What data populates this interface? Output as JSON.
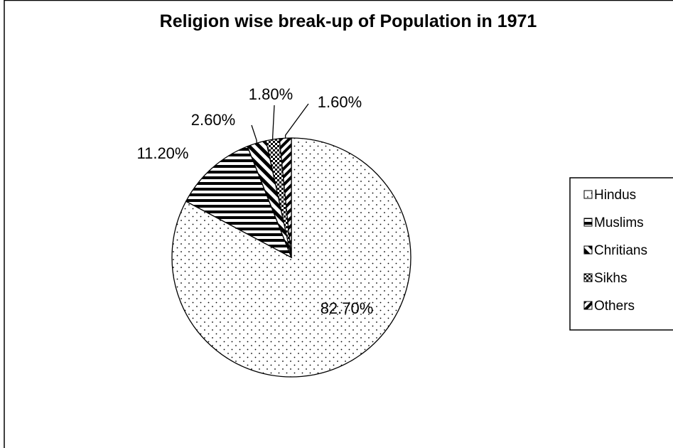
{
  "chart_data": {
    "type": "pie",
    "title": "Religion wise break-up of Population in 1971",
    "categories": [
      "Hindus",
      "Muslims",
      "Chritians",
      "Sikhs",
      "Others"
    ],
    "values": [
      82.7,
      11.2,
      2.6,
      1.8,
      1.6
    ],
    "data_labels": [
      "82.70%",
      "11.20%",
      "2.60%",
      "1.80%",
      "1.60%"
    ],
    "legend": {
      "position": "right",
      "entries": [
        "Hindus",
        "Muslims",
        "Chritians",
        "Sikhs",
        "Others"
      ]
    },
    "fill_patterns": [
      "dots",
      "horizontal-stripes",
      "diagonal-stripes-down",
      "checker",
      "diagonal-stripes-up"
    ]
  }
}
